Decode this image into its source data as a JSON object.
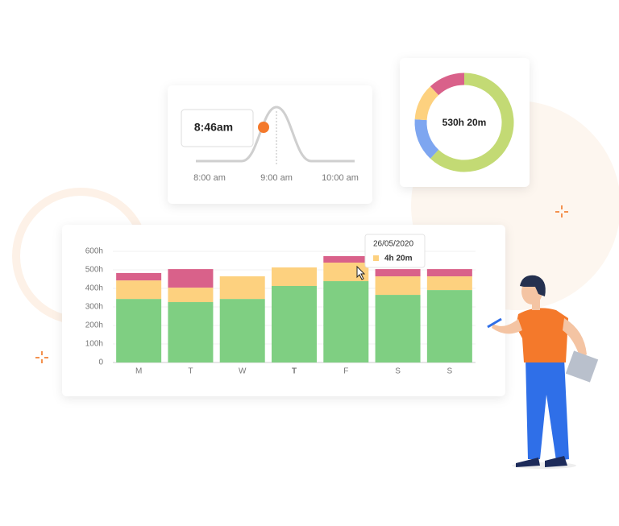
{
  "chart_data": [
    {
      "type": "bar",
      "stacked": true,
      "categories": [
        "M",
        "T",
        "W",
        "T",
        "F",
        "S",
        "S"
      ],
      "highlight": 3,
      "series": [
        {
          "color": "#7fcf82",
          "values": [
            343,
            326,
            343,
            413,
            439,
            365,
            391
          ]
        },
        {
          "color": "#fdd17f",
          "values": [
            100,
            78,
            122,
            100,
            100,
            100,
            74
          ]
        },
        {
          "color": "#d9618a",
          "values": [
            40,
            100,
            0,
            0,
            35,
            39,
            39
          ]
        }
      ],
      "ylim": [
        0,
        600
      ],
      "yticks": [
        0,
        {
          "value": 100,
          "label": "100h"
        },
        {
          "value": 200,
          "label": "200h"
        },
        {
          "value": 300,
          "label": "300h"
        },
        {
          "value": 400,
          "label": "400h"
        },
        {
          "value": 500,
          "label": "500h"
        },
        {
          "value": 600,
          "label": "600h"
        }
      ],
      "grid": true
    },
    {
      "type": "donut",
      "center_label": "530h 20m",
      "values": [
        62,
        14,
        12,
        12
      ],
      "colors": [
        "#c3da74",
        "#7ea6f0",
        "#fdd17f",
        "#d9618a"
      ]
    }
  ],
  "time_card": {
    "time": "8:46am",
    "ticks": [
      "8:00 am",
      "9:00 am",
      "10:00 am"
    ]
  },
  "tooltip": {
    "date": "26/05/2020",
    "value": "4h 20m"
  }
}
